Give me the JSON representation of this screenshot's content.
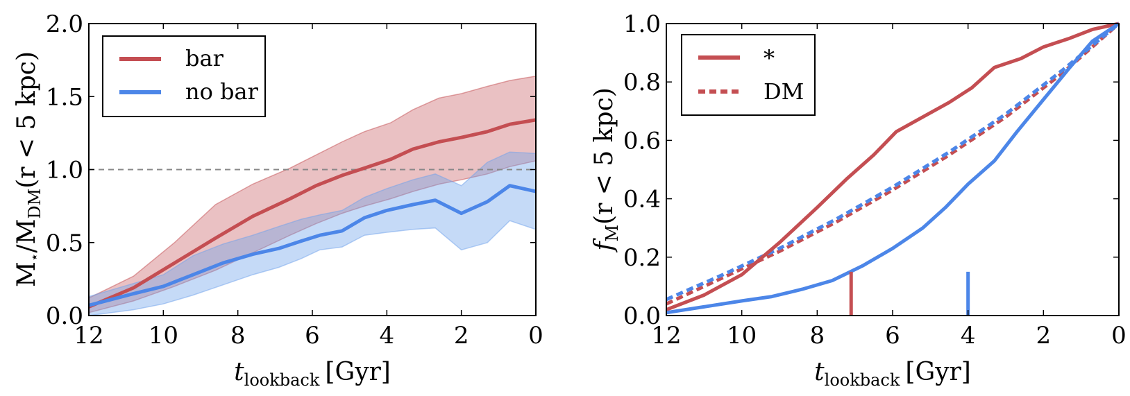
{
  "colors": {
    "bar": "#c44e52",
    "nobar": "#4c86e8",
    "bar_fill": "#c44e52",
    "nobar_fill": "#6fa2ec",
    "ref": "#888888"
  },
  "chart_data": [
    {
      "type": "line",
      "title": "",
      "xlabel": {
        "main": "t",
        "sub": "lookback",
        "unit": "[Gyr]"
      },
      "ylabel": {
        "part1": "M",
        "star": "⋆",
        "part2": "/M",
        "sub": "DM",
        "part3": "(r < 5 kpc)"
      },
      "xlim": [
        12,
        0
      ],
      "ylim": [
        0,
        2
      ],
      "xticks": [
        12,
        10,
        8,
        6,
        4,
        2,
        0
      ],
      "xticklabels": [
        "12",
        "10",
        "8",
        "6",
        "4",
        "2",
        "0"
      ],
      "yticks": [
        0,
        0.5,
        1,
        1.5,
        2
      ],
      "yticklabels": [
        "0.0",
        "0.5",
        "1.0",
        "1.5",
        "2.0"
      ],
      "reference_line": {
        "y": 1.0,
        "style": "dashed"
      },
      "legend": {
        "placement": "top-left",
        "entries": [
          {
            "label": "bar",
            "series": "bar"
          },
          {
            "label": "no bar",
            "series": "nobar"
          }
        ]
      },
      "series": [
        {
          "name": "bar",
          "x": [
            12,
            10.8,
            9.7,
            8.6,
            7.6,
            6.6,
            5.9,
            5.2,
            4.6,
            3.9,
            3.3,
            2.6,
            2.0,
            1.3,
            0.7,
            0
          ],
          "y": [
            0.06,
            0.19,
            0.36,
            0.53,
            0.68,
            0.8,
            0.89,
            0.96,
            1.01,
            1.07,
            1.14,
            1.19,
            1.22,
            1.26,
            1.31,
            1.34
          ],
          "lower": [
            0.02,
            0.1,
            0.2,
            0.31,
            0.43,
            0.55,
            0.63,
            0.7,
            0.75,
            0.8,
            0.85,
            0.9,
            0.93,
            0.97,
            1.02,
            1.06
          ],
          "upper": [
            0.12,
            0.27,
            0.5,
            0.76,
            0.9,
            1.01,
            1.1,
            1.19,
            1.26,
            1.32,
            1.41,
            1.49,
            1.52,
            1.57,
            1.61,
            1.64
          ]
        },
        {
          "name": "nobar",
          "x": [
            12,
            10.8,
            10.0,
            9.2,
            8.4,
            7.6,
            6.9,
            6.3,
            5.8,
            5.2,
            4.6,
            4.0,
            3.3,
            2.7,
            2.0,
            1.3,
            0.7,
            0
          ],
          "y": [
            0.07,
            0.15,
            0.2,
            0.28,
            0.36,
            0.42,
            0.46,
            0.51,
            0.55,
            0.58,
            0.67,
            0.72,
            0.76,
            0.79,
            0.7,
            0.78,
            0.89,
            0.85
          ],
          "lower": [
            0.0,
            0.04,
            0.08,
            0.14,
            0.21,
            0.28,
            0.33,
            0.39,
            0.45,
            0.47,
            0.55,
            0.57,
            0.59,
            0.6,
            0.45,
            0.5,
            0.65,
            0.59
          ],
          "upper": [
            0.13,
            0.22,
            0.28,
            0.41,
            0.49,
            0.55,
            0.61,
            0.66,
            0.69,
            0.72,
            0.81,
            0.87,
            0.93,
            0.97,
            0.89,
            1.05,
            1.12,
            1.11
          ]
        }
      ]
    },
    {
      "type": "line",
      "title": "",
      "xlabel": {
        "main": "t",
        "sub": "lookback",
        "unit": "[Gyr]"
      },
      "ylabel": {
        "part1": "f",
        "sub": "M",
        "part2": "(r < 5 kpc)"
      },
      "xlim": [
        12,
        0
      ],
      "ylim": [
        0,
        1
      ],
      "xticks": [
        12,
        10,
        8,
        6,
        4,
        2,
        0
      ],
      "xticklabels": [
        "12",
        "10",
        "8",
        "6",
        "4",
        "2",
        "0"
      ],
      "yticks": [
        0,
        0.2,
        0.4,
        0.6,
        0.8,
        1
      ],
      "yticklabels": [
        "0.0",
        "0.2",
        "0.4",
        "0.6",
        "0.8",
        "1.0"
      ],
      "legend": {
        "placement": "top-left",
        "entries": [
          {
            "label": "*",
            "style": "solid"
          },
          {
            "label": "DM",
            "style": "dashed"
          }
        ]
      },
      "series": [
        {
          "name": "bar stars",
          "style": "solid",
          "color": "bar",
          "x": [
            12,
            11.0,
            10.0,
            9.0,
            8.0,
            7.2,
            6.5,
            5.9,
            5.2,
            4.5,
            3.9,
            3.3,
            2.6,
            2.0,
            1.3,
            0.7,
            0
          ],
          "y": [
            0.02,
            0.07,
            0.14,
            0.25,
            0.37,
            0.47,
            0.55,
            0.63,
            0.68,
            0.73,
            0.78,
            0.85,
            0.88,
            0.92,
            0.95,
            0.98,
            1.0
          ]
        },
        {
          "name": "nobar stars",
          "style": "solid",
          "color": "nobar",
          "x": [
            12,
            11.0,
            10.0,
            9.2,
            8.4,
            7.6,
            6.8,
            6.0,
            5.2,
            4.6,
            4.0,
            3.3,
            2.7,
            2.0,
            1.3,
            0.7,
            0
          ],
          "y": [
            0.01,
            0.03,
            0.05,
            0.065,
            0.09,
            0.12,
            0.17,
            0.23,
            0.3,
            0.37,
            0.45,
            0.53,
            0.63,
            0.74,
            0.85,
            0.94,
            1.0
          ]
        },
        {
          "name": "bar DM",
          "style": "dashed",
          "color": "bar",
          "x": [
            12,
            10.5,
            9.0,
            7.5,
            6.0,
            4.5,
            3.0,
            1.5,
            0
          ],
          "y": [
            0.04,
            0.13,
            0.22,
            0.32,
            0.43,
            0.55,
            0.68,
            0.83,
            1.0
          ]
        },
        {
          "name": "nobar DM",
          "style": "dashed",
          "color": "nobar",
          "x": [
            12,
            10.5,
            9.0,
            7.5,
            6.0,
            4.5,
            3.0,
            1.5,
            0
          ],
          "y": [
            0.055,
            0.14,
            0.23,
            0.33,
            0.44,
            0.56,
            0.69,
            0.84,
            1.0
          ]
        }
      ],
      "markers": [
        {
          "name": "bar",
          "x": 7.1,
          "y0": 0.0,
          "y1": 0.15,
          "color": "bar"
        },
        {
          "name": "nobar",
          "x": 4.0,
          "y0": 0.0,
          "y1": 0.15,
          "color": "nobar"
        }
      ]
    }
  ]
}
